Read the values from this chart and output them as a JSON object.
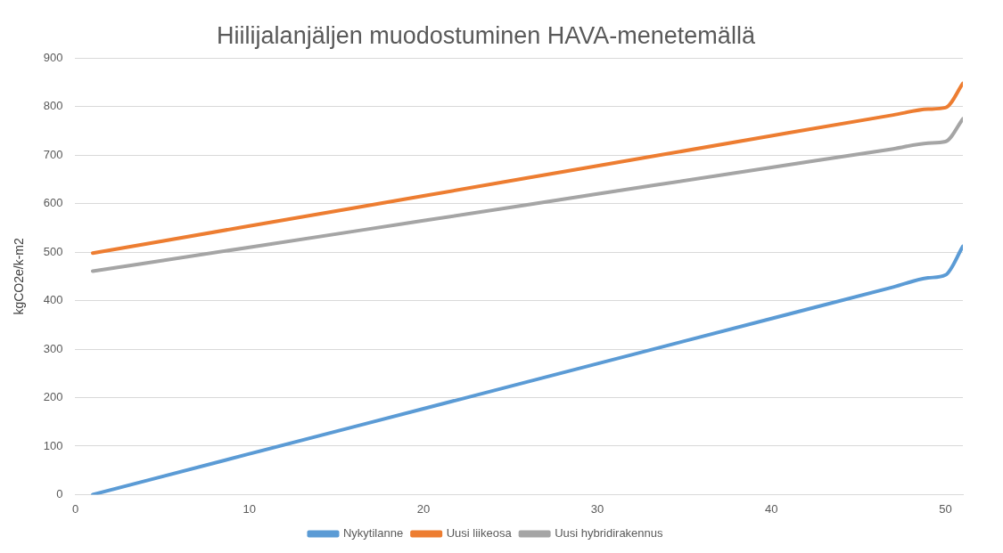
{
  "chart_data": {
    "type": "line",
    "title": "Hiilijalanjäljen muodostuminen HAVA-menetemällä",
    "ylabel": "kgCO2e/k-m2",
    "x": [
      1,
      10,
      20,
      30,
      40,
      47,
      49,
      50,
      51
    ],
    "series": [
      {
        "name": "Nykytilanne",
        "color": "#5b9bd5",
        "values": [
          0,
          84,
          177,
          270,
          363,
          428,
          447,
          453,
          512
        ]
      },
      {
        "name": "Uusi liikeosa",
        "color": "#ed7d31",
        "values": [
          498,
          554,
          616,
          678,
          740,
          783,
          795,
          798,
          848
        ]
      },
      {
        "name": "Uusi hybridirakennus",
        "color": "#a5a5a5",
        "values": [
          461,
          510,
          565,
          620,
          675,
          713,
          725,
          728,
          775
        ]
      }
    ],
    "xlim": [
      0,
      51
    ],
    "xticks": [
      0,
      10,
      20,
      30,
      40,
      50
    ],
    "ylim": [
      0,
      900
    ],
    "yticks": [
      0,
      100,
      200,
      300,
      400,
      500,
      600,
      700,
      800,
      900
    ],
    "grid": "y",
    "legend": "bottom",
    "marker": "none",
    "line_style": "solid"
  }
}
